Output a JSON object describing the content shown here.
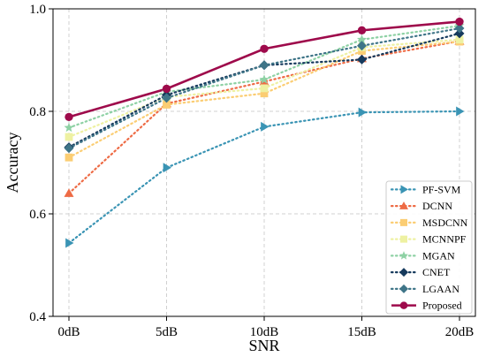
{
  "chart_data": {
    "type": "line",
    "categories": [
      "0dB",
      "5dB",
      "10dB",
      "15dB",
      "20dB"
    ],
    "xlabel": "SNR",
    "ylabel": "Accuracy",
    "ylim": [
      0.4,
      1.0
    ],
    "yticks": [
      "0.4",
      "0.6",
      "0.8",
      "1.0"
    ],
    "grid": true,
    "legend_position": "bottom-right",
    "series": [
      {
        "name": "PF-SVM",
        "values": [
          0.543,
          0.69,
          0.77,
          0.798,
          0.8
        ],
        "color": "#3a94b4",
        "marker": "triangle-right",
        "style": "dotted"
      },
      {
        "name": "DCNN",
        "values": [
          0.64,
          0.815,
          0.858,
          0.903,
          0.937
        ],
        "color": "#ee6b45",
        "marker": "triangle-up",
        "style": "dotted"
      },
      {
        "name": "MSDCNN",
        "values": [
          0.71,
          0.813,
          0.835,
          0.918,
          0.936
        ],
        "color": "#fbcd73",
        "marker": "square",
        "style": "dotted"
      },
      {
        "name": "MCNNPF",
        "values": [
          0.75,
          0.828,
          0.845,
          0.925,
          0.94
        ],
        "color": "#eef1a2",
        "marker": "square",
        "style": "dotted"
      },
      {
        "name": "MGAN",
        "values": [
          0.768,
          0.838,
          0.862,
          0.94,
          0.967
        ],
        "color": "#8ed1a4",
        "marker": "star",
        "style": "dotted"
      },
      {
        "name": "CNET",
        "values": [
          0.73,
          0.832,
          0.89,
          0.901,
          0.952
        ],
        "color": "#163a5d",
        "marker": "diamond",
        "style": "dotted"
      },
      {
        "name": "LGAAN",
        "values": [
          0.728,
          0.826,
          0.89,
          0.928,
          0.962
        ],
        "color": "#3f7588",
        "marker": "diamond",
        "style": "dotted"
      },
      {
        "name": "Proposed",
        "values": [
          0.789,
          0.844,
          0.922,
          0.958,
          0.975
        ],
        "color": "#9e0a4b",
        "marker": "circle",
        "style": "solid"
      }
    ]
  }
}
